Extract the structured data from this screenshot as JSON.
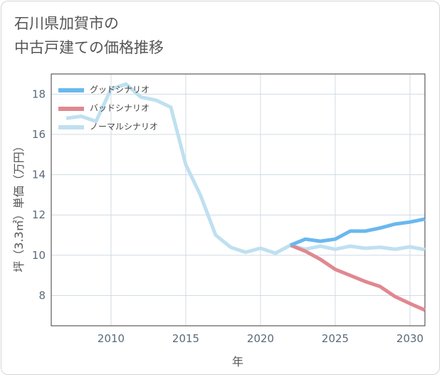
{
  "chart_data": {
    "type": "line",
    "title_lines": [
      "石川県加賀市の",
      "中古戸建ての価格推移"
    ],
    "xlabel": "年",
    "ylabel": "坪（3.3㎡）単価（万円）",
    "xlim": [
      2006,
      2031
    ],
    "ylim": [
      6.5,
      19
    ],
    "x_ticks": [
      2010,
      2015,
      2020,
      2025,
      2030
    ],
    "y_ticks": [
      8,
      10,
      12,
      14,
      16,
      18
    ],
    "grid": true,
    "legend_position": "top-left",
    "series": [
      {
        "name": "グッドシナリオ",
        "color": "#6ab8ee",
        "x": [
          2022,
          2023,
          2024,
          2025,
          2026,
          2027,
          2028,
          2029,
          2030,
          2031
        ],
        "y": [
          10.5,
          10.8,
          10.7,
          10.8,
          11.2,
          11.2,
          11.35,
          11.55,
          11.65,
          11.8
        ]
      },
      {
        "name": "バッドシナリオ",
        "color": "#e08890",
        "x": [
          2022,
          2023,
          2024,
          2025,
          2026,
          2027,
          2028,
          2029,
          2030,
          2031
        ],
        "y": [
          10.5,
          10.2,
          9.8,
          9.3,
          9.0,
          8.7,
          8.45,
          7.95,
          7.6,
          7.28
        ]
      },
      {
        "name": "ノーマルシナリオ",
        "color": "#bfe0f0",
        "x": [
          2007,
          2008,
          2009,
          2010,
          2011,
          2012,
          2013,
          2014,
          2015,
          2016,
          2017,
          2018,
          2019,
          2020,
          2021,
          2022,
          2023,
          2024,
          2025,
          2026,
          2027,
          2028,
          2029,
          2030,
          2031
        ],
        "y": [
          16.8,
          16.9,
          16.65,
          18.25,
          18.5,
          17.85,
          17.7,
          17.35,
          14.5,
          12.95,
          11.0,
          10.4,
          10.15,
          10.35,
          10.1,
          10.5,
          10.3,
          10.45,
          10.3,
          10.45,
          10.35,
          10.4,
          10.3,
          10.42,
          10.28
        ]
      }
    ]
  }
}
